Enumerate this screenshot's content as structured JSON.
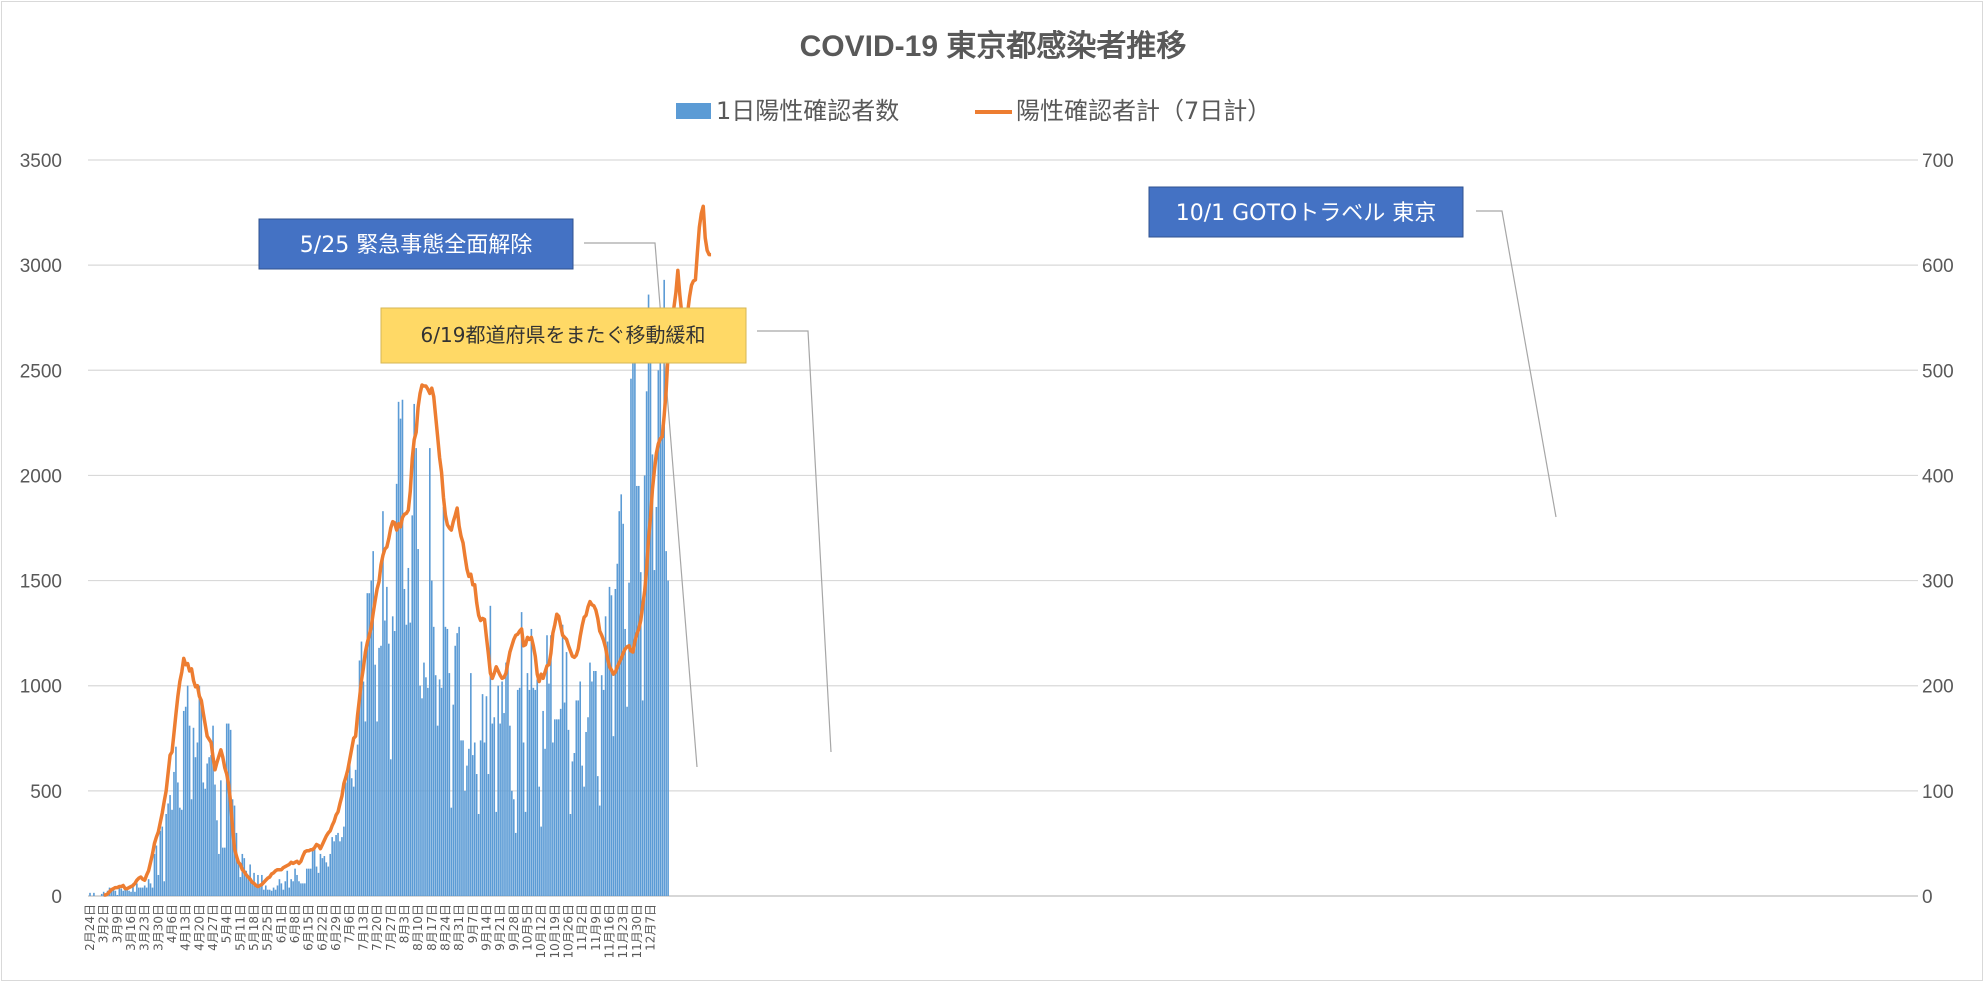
{
  "chart_data": {
    "type": "bar+line",
    "title": "COVID-19 東京都感染者推移",
    "legend": {
      "placement": "top",
      "entries": [
        "1日陽性確認者数",
        "陽性確認者計（7日計）"
      ]
    },
    "y_left": {
      "ticks": [
        "0",
        "500",
        "1000",
        "1500",
        "2000",
        "2500",
        "3000",
        "3500"
      ],
      "range": [
        0,
        3500
      ]
    },
    "y_right": {
      "ticks": [
        "0",
        "100",
        "200",
        "300",
        "400",
        "500",
        "600",
        "700"
      ],
      "range": [
        0,
        700
      ]
    },
    "grid": true,
    "colors": {
      "bars": "#5b9bd5",
      "line": "#ed7d31",
      "grid": "#d9d9d9",
      "annotation_blue": "#4472c4",
      "annotation_yellow": "#ffd966",
      "leader": "#a6a6a6"
    },
    "x": {
      "start": "2020-02-24",
      "end": "2020-12-07",
      "tick_every_days": 7
    },
    "x_tick_labels": [
      "2月24日",
      "3月2日",
      "3月9日",
      "3月16日",
      "3月23日",
      "3月30日",
      "4月6日",
      "4月13日",
      "4月20日",
      "4月27日",
      "5月4日",
      "5月11日",
      "5月18日",
      "5月25日",
      "6月1日",
      "6月8日",
      "6月15日",
      "6月22日",
      "6月29日",
      "7月6日",
      "7月13日",
      "7月20日",
      "7月27日",
      "8月3日",
      "8月10日",
      "8月17日",
      "8月24日",
      "8月31日",
      "9月7日",
      "9月14日",
      "9月21日",
      "9月28日",
      "10月5日",
      "10月12日",
      "10月19日",
      "10月26日",
      "11月2日",
      "11月9日",
      "11月16日",
      "11月23日",
      "11月30日",
      "12月7日"
    ],
    "series": [
      {
        "name": "1日陽性確認者数",
        "type": "bar",
        "axis": "left",
        "values": [
          15,
          0,
          15,
          0,
          0,
          0,
          10,
          20,
          0,
          25,
          40,
          25,
          40,
          25,
          5,
          40,
          35,
          25,
          40,
          30,
          25,
          20,
          60,
          20,
          60,
          40,
          40,
          40,
          50,
          40,
          80,
          60,
          40,
          200,
          240,
          100,
          310,
          330,
          70,
          390,
          440,
          480,
          410,
          590,
          710,
          540,
          420,
          410,
          880,
          900,
          1000,
          810,
          460,
          800,
          660,
          730,
          1000,
          900,
          540,
          510,
          630,
          660,
          670,
          810,
          530,
          360,
          200,
          550,
          230,
          230,
          820,
          820,
          790,
          460,
          430,
          300,
          170,
          90,
          200,
          180,
          120,
          90,
          150,
          70,
          110,
          50,
          100,
          50,
          100,
          30,
          50,
          30,
          30,
          25,
          40,
          30,
          50,
          80,
          60,
          30,
          70,
          120,
          40,
          80,
          70,
          130,
          100,
          70,
          60,
          60,
          60,
          130,
          130,
          130,
          230,
          240,
          140,
          110,
          200,
          180,
          190,
          160,
          140,
          200,
          280,
          260,
          290,
          300,
          260,
          280,
          330,
          540,
          580,
          640,
          560,
          520,
          600,
          720,
          1120,
          1210,
          1020,
          830,
          1440,
          1440,
          1500,
          1640,
          1100,
          830,
          1180,
          1190,
          1830,
          1310,
          1470,
          1200,
          650,
          1330,
          1260,
          1960,
          2350,
          2270,
          2360,
          1460,
          1290,
          1560,
          1300,
          1810,
          2340,
          2130,
          1650,
          1000,
          940,
          1110,
          1040,
          990,
          2130,
          1500,
          1280,
          1050,
          810,
          1030,
          990,
          1850,
          1280,
          1270,
          1060,
          420,
          910,
          1190,
          1250,
          1280,
          740,
          740,
          500,
          620,
          700,
          1060,
          670,
          730,
          580,
          390,
          740,
          960,
          730,
          950,
          580,
          1380,
          820,
          850,
          400,
          1000,
          820,
          1020,
          870,
          1110,
          1090,
          810,
          500,
          460,
          300,
          980,
          990,
          1350,
          730,
          400,
          1060,
          980,
          1270,
          990,
          980,
          1030,
          520,
          330,
          880,
          700,
          1240,
          1010,
          1240,
          730,
          840,
          840,
          840,
          890,
          1290,
          920,
          1160,
          790,
          390,
          640,
          680,
          930,
          930,
          1020,
          620,
          520,
          780,
          850,
          1110,
          1020,
          1070,
          1070,
          570,
          430,
          1050,
          980,
          1330,
          1210,
          1470,
          1430,
          760,
          1460,
          1580,
          1830,
          1910,
          1770,
          1270,
          900,
          1490,
          2460,
          2690,
          2680,
          1950,
          1950,
          1540,
          930,
          2000,
          2400,
          2860,
          2700,
          2100,
          1550,
          1850,
          2500,
          2670,
          2240,
          2930,
          1640,
          1500
        ]
      },
      {
        "name": "陽性確認者計（7日計）",
        "type": "line",
        "axis": "right",
        "x_start_index": 7,
        "values": [
          1,
          1,
          2,
          4,
          6,
          7,
          8,
          8,
          9,
          9,
          10,
          7,
          7,
          8,
          9,
          10,
          12,
          15,
          17,
          18,
          16,
          15,
          20,
          24,
          32,
          40,
          50,
          56,
          61,
          70,
          79,
          90,
          100,
          117,
          134,
          137,
          155,
          173,
          190,
          204,
          213,
          226,
          220,
          221,
          214,
          216,
          205,
          199,
          200,
          190,
          186,
          174,
          163,
          152,
          149,
          146,
          132,
          120,
          127,
          133,
          139,
          132,
          122,
          116,
          106,
          89,
          65,
          45,
          38,
          32,
          30,
          25,
          23,
          20,
          18,
          16,
          13,
          12,
          10,
          9,
          10,
          11,
          13,
          15,
          17,
          18,
          21,
          22,
          24,
          25,
          25,
          25,
          27,
          28,
          29,
          30,
          32,
          31,
          32,
          33,
          31,
          33,
          38,
          42,
          43,
          43,
          44,
          44,
          46,
          49,
          48,
          45,
          49,
          53,
          57,
          60,
          62,
          67,
          71,
          77,
          80,
          88,
          95,
          107,
          113,
          120,
          130,
          140,
          150,
          152,
          172,
          188,
          205,
          217,
          232,
          241,
          248,
          256,
          269,
          281,
          292,
          299,
          315,
          324,
          330,
          332,
          340,
          350,
          356,
          355,
          348,
          354,
          351,
          360,
          363,
          364,
          367,
          385,
          416,
          434,
          441,
          465,
          478,
          486,
          485,
          485,
          482,
          478,
          483,
          475,
          456,
          437,
          417,
          403,
          379,
          362,
          353,
          350,
          348,
          356,
          362,
          369,
          352,
          342,
          336,
          323,
          311,
          304,
          306,
          296,
          296,
          279,
          267,
          262,
          264,
          263,
          246,
          230,
          212,
          207,
          212,
          218,
          214,
          210,
          207,
          208,
          212,
          222,
          232,
          238,
          244,
          248,
          249,
          252,
          254,
          238,
          239,
          246,
          244,
          246,
          238,
          228,
          211,
          204,
          211,
          207,
          213,
          219,
          220,
          231,
          250,
          258,
          268,
          266,
          257,
          248,
          246,
          244,
          238,
          233,
          228,
          227,
          229,
          235,
          247,
          257,
          265,
          267,
          275,
          280,
          277,
          276,
          272,
          264,
          252,
          248,
          243,
          236,
          226,
          218,
          215,
          211,
          213,
          218,
          222,
          226,
          231,
          235,
          237,
          238,
          233,
          232,
          242,
          249,
          254,
          262,
          276,
          290,
          310,
          340,
          360,
          387,
          405,
          421,
          430,
          435,
          437,
          457,
          480,
          516,
          528,
          545,
          560,
          574,
          595,
          572,
          554,
          540,
          548,
          555,
          570,
          581,
          585,
          586,
          612,
          636,
          649,
          656,
          626,
          614,
          610,
          610
        ]
      }
    ],
    "annotations": [
      {
        "text": "5/25 緊急事態全面解除",
        "style": "blue",
        "points_to": "2020-05-25"
      },
      {
        "text": "6/19都道府県をまたぐ移動緩和",
        "style": "yellow",
        "points_to": "2020-06-19"
      },
      {
        "text": "10/1 GOTOトラベル 東京",
        "style": "blue",
        "points_to": "2020-10-01"
      }
    ]
  }
}
